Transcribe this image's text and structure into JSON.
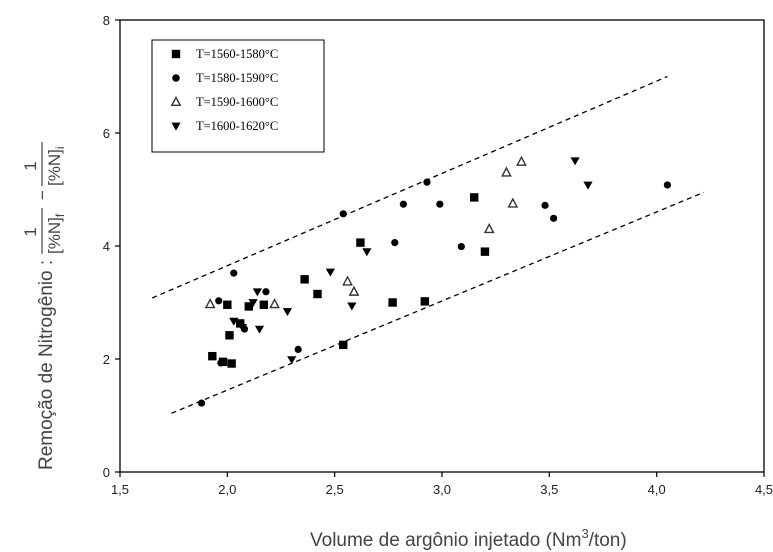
{
  "chart_data": {
    "type": "scatter",
    "title": "",
    "xlabel": {
      "main": "Volume de argônio injetado (Nm",
      "sup": "3",
      "tail": "/ton)"
    },
    "ylabel": {
      "main": "Remoção de Nitrogênio :",
      "num_left": "1",
      "den_left": "[%N]",
      "den_left_sub": "f",
      "minus": "−",
      "num_right": "1",
      "den_right": "[%N]",
      "den_right_sub": "i"
    },
    "xlim": [
      1.5,
      4.5
    ],
    "ylim": [
      0,
      8
    ],
    "xticks": [
      "1,5",
      "2,0",
      "2,5",
      "3,0",
      "3,5",
      "4,0",
      "4,5"
    ],
    "yticks": [
      "0",
      "2",
      "4",
      "6",
      "8"
    ],
    "legend_position": "top-left",
    "series": [
      {
        "name": "T=1560-1580°C",
        "marker": "square",
        "points": [
          [
            1.93,
            2.05
          ],
          [
            1.98,
            1.95
          ],
          [
            2.0,
            2.96
          ],
          [
            2.01,
            2.42
          ],
          [
            2.02,
            1.92
          ],
          [
            2.06,
            2.63
          ],
          [
            2.1,
            2.93
          ],
          [
            2.17,
            2.96
          ],
          [
            2.36,
            3.41
          ],
          [
            2.42,
            3.15
          ],
          [
            2.54,
            2.25
          ],
          [
            2.62,
            4.06
          ],
          [
            2.77,
            3.0
          ],
          [
            2.92,
            3.02
          ],
          [
            3.15,
            4.86
          ],
          [
            3.2,
            3.9
          ]
        ]
      },
      {
        "name": "T=1580-1590°C",
        "marker": "circle",
        "points": [
          [
            1.88,
            1.22
          ],
          [
            1.96,
            3.03
          ],
          [
            1.97,
            1.93
          ],
          [
            2.03,
            3.52
          ],
          [
            2.08,
            2.53
          ],
          [
            2.18,
            3.19
          ],
          [
            2.33,
            2.17
          ],
          [
            2.54,
            4.57
          ],
          [
            2.78,
            4.06
          ],
          [
            2.82,
            4.74
          ],
          [
            2.93,
            5.13
          ],
          [
            2.99,
            4.74
          ],
          [
            3.09,
            3.99
          ],
          [
            3.48,
            4.72
          ],
          [
            3.52,
            4.49
          ],
          [
            4.05,
            5.08
          ]
        ]
      },
      {
        "name": "T=1590-1600°C",
        "marker": "triangle-up",
        "points": [
          [
            1.92,
            2.97
          ],
          [
            2.22,
            2.97
          ],
          [
            2.56,
            3.37
          ],
          [
            2.59,
            3.19
          ],
          [
            3.22,
            4.3
          ],
          [
            3.3,
            5.3
          ],
          [
            3.33,
            4.75
          ],
          [
            3.37,
            5.49
          ]
        ]
      },
      {
        "name": "T=1600-1620°C",
        "marker": "triangle-down",
        "points": [
          [
            2.03,
            2.67
          ],
          [
            2.07,
            2.56
          ],
          [
            2.12,
            3.0
          ],
          [
            2.14,
            3.19
          ],
          [
            2.15,
            2.53
          ],
          [
            2.28,
            2.84
          ],
          [
            2.3,
            1.99
          ],
          [
            2.48,
            3.54
          ],
          [
            2.58,
            2.94
          ],
          [
            2.65,
            3.9
          ],
          [
            3.62,
            5.51
          ],
          [
            3.68,
            5.08
          ]
        ]
      }
    ],
    "reference_lines": [
      {
        "style": "dashed",
        "points": [
          [
            1.65,
            3.08
          ],
          [
            4.05,
            7.0
          ]
        ]
      },
      {
        "style": "dashed",
        "points": [
          [
            1.74,
            1.04
          ],
          [
            4.22,
            4.95
          ]
        ]
      }
    ]
  }
}
